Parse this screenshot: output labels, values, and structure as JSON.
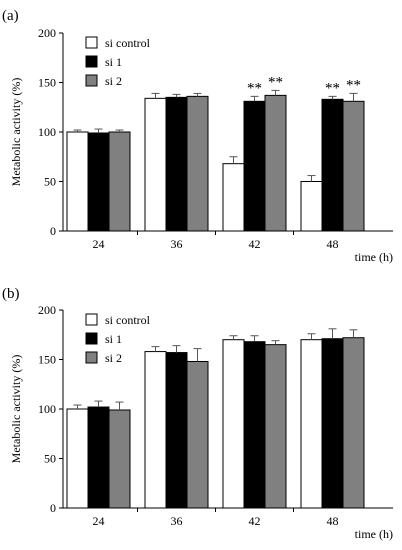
{
  "chart_data": [
    {
      "type": "bar",
      "panel_label": "(a)",
      "categories": [
        "24",
        "36",
        "42",
        "48"
      ],
      "xlabel": "time (h)",
      "ylabel": "Metabolic activity (%)",
      "ylim": [
        0,
        200
      ],
      "yticks": [
        "0",
        "50",
        "100",
        "150",
        "200"
      ],
      "legend_position": "top-left",
      "series": [
        {
          "name": "si control",
          "color": "#ffffff",
          "values": [
            100,
            134,
            68,
            50
          ],
          "errors": [
            2,
            5,
            7,
            6
          ]
        },
        {
          "name": "si 1",
          "color": "#000000",
          "values": [
            99,
            135,
            131,
            133
          ],
          "errors": [
            4,
            3,
            5,
            3
          ]
        },
        {
          "name": "si 2",
          "color": "#808080",
          "values": [
            100,
            136,
            137,
            131
          ],
          "errors": [
            2,
            3,
            5,
            8
          ]
        }
      ],
      "annotations": [
        {
          "category": "42",
          "series": "si 1",
          "text": "**"
        },
        {
          "category": "42",
          "series": "si 2",
          "text": "**"
        },
        {
          "category": "48",
          "series": "si 1",
          "text": "**"
        },
        {
          "category": "48",
          "series": "si 2",
          "text": "**"
        }
      ]
    },
    {
      "type": "bar",
      "panel_label": "(b)",
      "categories": [
        "24",
        "36",
        "42",
        "48"
      ],
      "xlabel": "time (h)",
      "ylabel": "Metabolic activity (%)",
      "ylim": [
        0,
        200
      ],
      "yticks": [
        "0",
        "50",
        "100",
        "150",
        "200"
      ],
      "legend_position": "top-left",
      "series": [
        {
          "name": "si control",
          "color": "#ffffff",
          "values": [
            100,
            158,
            170,
            170
          ],
          "errors": [
            4,
            5,
            4,
            6
          ]
        },
        {
          "name": "si 1",
          "color": "#000000",
          "values": [
            102,
            157,
            168,
            171
          ],
          "errors": [
            6,
            7,
            6,
            10
          ]
        },
        {
          "name": "si 2",
          "color": "#808080",
          "values": [
            99,
            148,
            165,
            172
          ],
          "errors": [
            8,
            13,
            4,
            8
          ]
        }
      ],
      "annotations": []
    }
  ]
}
